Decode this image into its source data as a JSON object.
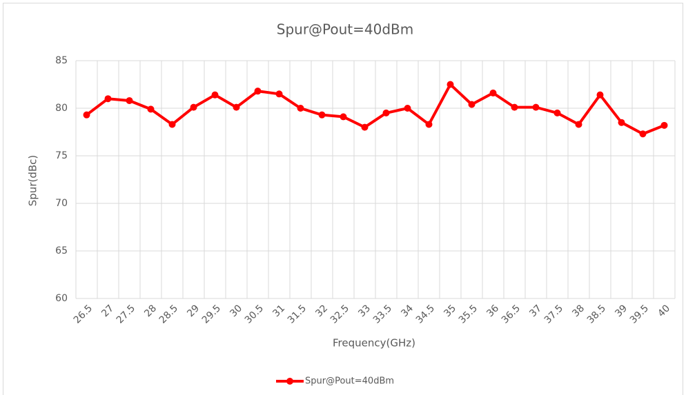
{
  "chart_data": {
    "type": "line",
    "title": "Spur@Pout=40dBm",
    "x_label": "Frequency(GHz)",
    "y_label": "Spur(dBc)",
    "categories": [
      "26.5",
      "27",
      "27.5",
      "28",
      "28.5",
      "29",
      "29.5",
      "30",
      "30.5",
      "31",
      "31.5",
      "32",
      "32.5",
      "33",
      "33.5",
      "34",
      "34.5",
      "35",
      "35.5",
      "36",
      "36.5",
      "37",
      "37.5",
      "38",
      "38.5",
      "39",
      "39.5",
      "40"
    ],
    "series": [
      {
        "name": "Spur@Pout=40dBm",
        "color": "#ff0000",
        "values": [
          79.3,
          81.0,
          80.8,
          79.9,
          78.3,
          80.1,
          81.4,
          80.1,
          81.8,
          81.5,
          80.0,
          79.3,
          79.1,
          78.0,
          79.5,
          80.0,
          78.3,
          82.5,
          80.4,
          81.6,
          80.1,
          80.1,
          79.5,
          78.3,
          81.4,
          78.5,
          77.3,
          78.2
        ]
      }
    ],
    "ylim": [
      60,
      85
    ],
    "yticks": [
      60,
      65,
      70,
      75,
      80,
      85
    ],
    "grid": true,
    "legend": "bottom"
  }
}
